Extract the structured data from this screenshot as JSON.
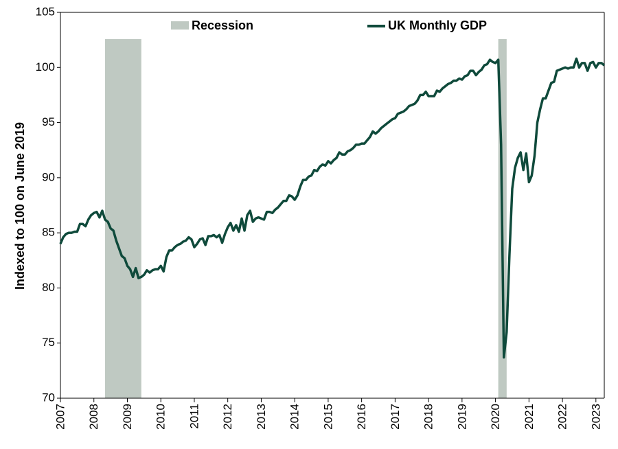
{
  "chart_data": {
    "type": "line",
    "y_label": "Indexed to 100 on June 2019",
    "recession": {
      "name": "Recession",
      "color": "#bfc9c2",
      "periods": [
        [
          2008.333,
          2009.417
        ],
        [
          2020.083,
          2020.333
        ]
      ]
    },
    "xlim": [
      2007,
      2023.25
    ],
    "xticks": [
      2007,
      2008,
      2009,
      2010,
      2011,
      2012,
      2013,
      2014,
      2015,
      2016,
      2017,
      2018,
      2019,
      2020,
      2021,
      2022,
      2023
    ],
    "ylim": [
      70,
      105
    ],
    "yticks": [
      70,
      75,
      80,
      85,
      90,
      95,
      100,
      105
    ],
    "grid": false,
    "x": [
      2007,
      2007.083,
      2007.167,
      2007.25,
      2007.333,
      2007.417,
      2007.5,
      2007.583,
      2007.667,
      2007.75,
      2007.833,
      2007.917,
      2008,
      2008.083,
      2008.167,
      2008.25,
      2008.333,
      2008.417,
      2008.5,
      2008.583,
      2008.667,
      2008.75,
      2008.833,
      2008.917,
      2009,
      2009.083,
      2009.167,
      2009.25,
      2009.333,
      2009.417,
      2009.5,
      2009.583,
      2009.667,
      2009.75,
      2009.833,
      2009.917,
      2010,
      2010.083,
      2010.167,
      2010.25,
      2010.333,
      2010.417,
      2010.5,
      2010.583,
      2010.667,
      2010.75,
      2010.833,
      2010.917,
      2011,
      2011.083,
      2011.167,
      2011.25,
      2011.333,
      2011.417,
      2011.5,
      2011.583,
      2011.667,
      2011.75,
      2011.833,
      2011.917,
      2012,
      2012.083,
      2012.167,
      2012.25,
      2012.333,
      2012.417,
      2012.5,
      2012.583,
      2012.667,
      2012.75,
      2012.833,
      2012.917,
      2013,
      2013.083,
      2013.167,
      2013.25,
      2013.333,
      2013.417,
      2013.5,
      2013.583,
      2013.667,
      2013.75,
      2013.833,
      2013.917,
      2014,
      2014.083,
      2014.167,
      2014.25,
      2014.333,
      2014.417,
      2014.5,
      2014.583,
      2014.667,
      2014.75,
      2014.833,
      2014.917,
      2015,
      2015.083,
      2015.167,
      2015.25,
      2015.333,
      2015.417,
      2015.5,
      2015.583,
      2015.667,
      2015.75,
      2015.833,
      2015.917,
      2016,
      2016.083,
      2016.167,
      2016.25,
      2016.333,
      2016.417,
      2016.5,
      2016.583,
      2016.667,
      2016.75,
      2016.833,
      2016.917,
      2017,
      2017.083,
      2017.167,
      2017.25,
      2017.333,
      2017.417,
      2017.5,
      2017.583,
      2017.667,
      2017.75,
      2017.833,
      2017.917,
      2018,
      2018.083,
      2018.167,
      2018.25,
      2018.333,
      2018.417,
      2018.5,
      2018.583,
      2018.667,
      2018.75,
      2018.833,
      2018.917,
      2019,
      2019.083,
      2019.167,
      2019.25,
      2019.333,
      2019.417,
      2019.5,
      2019.583,
      2019.667,
      2019.75,
      2019.833,
      2019.917,
      2020,
      2020.083,
      2020.167,
      2020.25,
      2020.333,
      2020.417,
      2020.5,
      2020.583,
      2020.667,
      2020.75,
      2020.833,
      2020.917,
      2021,
      2021.083,
      2021.167,
      2021.25,
      2021.333,
      2021.417,
      2021.5,
      2021.583,
      2021.667,
      2021.75,
      2021.833,
      2021.917,
      2022,
      2022.083,
      2022.167,
      2022.25,
      2022.333,
      2022.417,
      2022.5,
      2022.583,
      2022.667,
      2022.75,
      2022.833,
      2022.917,
      2023,
      2023.083,
      2023.167,
      2023.25
    ],
    "series": [
      {
        "name": "UK Monthly GDP",
        "color": "#0f4a3b",
        "values": [
          84.0,
          84.6,
          84.9,
          85.0,
          85.0,
          85.1,
          85.1,
          85.8,
          85.8,
          85.6,
          86.2,
          86.6,
          86.8,
          86.9,
          86.4,
          87.0,
          86.2,
          86.0,
          85.4,
          85.2,
          84.3,
          83.6,
          82.9,
          82.7,
          82.0,
          81.7,
          81.0,
          81.8,
          80.9,
          81.0,
          81.2,
          81.6,
          81.4,
          81.6,
          81.7,
          81.7,
          82.0,
          81.5,
          82.8,
          83.4,
          83.4,
          83.7,
          83.9,
          84.0,
          84.2,
          84.3,
          84.6,
          84.4,
          83.7,
          84.0,
          84.4,
          84.5,
          83.9,
          84.7,
          84.7,
          84.8,
          84.6,
          84.8,
          84.1,
          84.9,
          85.5,
          85.9,
          85.2,
          85.7,
          85.1,
          86.3,
          85.2,
          86.6,
          87.0,
          86.0,
          86.3,
          86.4,
          86.3,
          86.2,
          86.9,
          86.9,
          86.8,
          87.1,
          87.3,
          87.6,
          87.9,
          87.9,
          88.4,
          88.3,
          88.0,
          88.4,
          89.2,
          89.8,
          89.8,
          90.1,
          90.2,
          90.7,
          90.6,
          91.0,
          91.2,
          91.1,
          91.5,
          91.3,
          91.6,
          91.8,
          92.3,
          92.1,
          92.1,
          92.4,
          92.5,
          92.7,
          93.0,
          93.0,
          93.1,
          93.1,
          93.4,
          93.7,
          94.2,
          94.0,
          94.2,
          94.5,
          94.7,
          94.9,
          95.1,
          95.3,
          95.4,
          95.8,
          95.9,
          96.0,
          96.2,
          96.5,
          96.6,
          96.7,
          97.0,
          97.5,
          97.5,
          97.8,
          97.4,
          97.4,
          97.4,
          97.9,
          97.8,
          98.1,
          98.3,
          98.5,
          98.6,
          98.8,
          98.8,
          99.0,
          98.9,
          99.2,
          99.3,
          99.7,
          99.7,
          99.3,
          99.6,
          99.8,
          100.2,
          100.3,
          100.7,
          100.5,
          100.4,
          100.7,
          93.0,
          73.7,
          76.0,
          83.0,
          89.0,
          90.9,
          91.8,
          92.3,
          90.7,
          92.2,
          89.6,
          90.2,
          92.0,
          95.0,
          96.2,
          97.2,
          97.2,
          97.9,
          98.6,
          98.7,
          99.7,
          99.8,
          99.9,
          100.0,
          99.9,
          100.0,
          100.0,
          100.8,
          100.0,
          100.4,
          100.4,
          99.7,
          100.4,
          100.5,
          100.0,
          100.4,
          100.4,
          100.2
        ]
      }
    ]
  }
}
